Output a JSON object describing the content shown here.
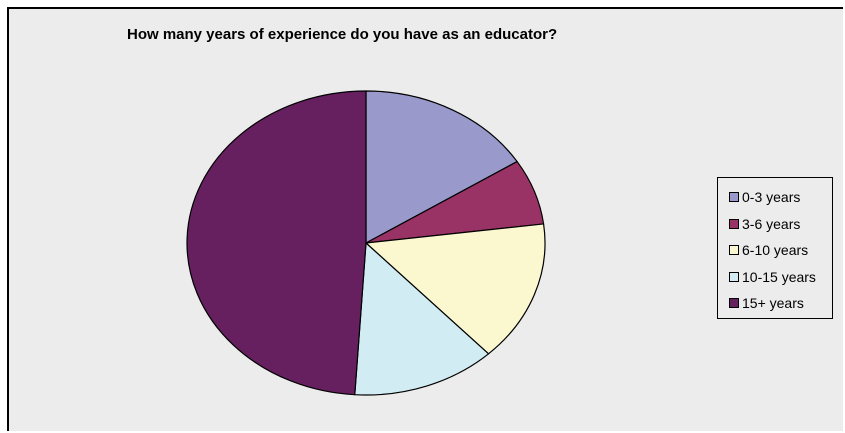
{
  "chart_data": {
    "type": "pie",
    "title": "How many years of experience do you have as an educator?",
    "categories": [
      "0-3 years",
      "3-6 years",
      "6-10 years",
      "10-15 years",
      "15+ years"
    ],
    "values": [
      16,
      7,
      15,
      13,
      49
    ],
    "colors": [
      "#9999cc",
      "#993366",
      "#fbf7cf",
      "#d1ecf2",
      "#662060"
    ],
    "legend_position": "right"
  }
}
